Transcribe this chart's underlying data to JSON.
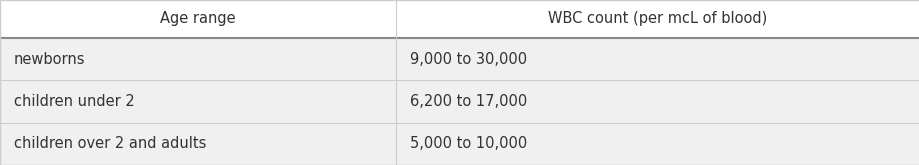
{
  "col1_header": "Age range",
  "col2_header": "WBC count (per mcL of blood)",
  "rows": [
    [
      "newborns",
      "9,000 to 30,000"
    ],
    [
      "children under 2",
      "6,200 to 17,000"
    ],
    [
      "children over 2 and adults",
      "5,000 to 10,000"
    ]
  ],
  "header_bg": "#ffffff",
  "row_bg": "#f0f0f0",
  "divider_color": "#888888",
  "cell_divider_color": "#cccccc",
  "header_fontsize": 10.5,
  "cell_fontsize": 10.5,
  "col_split": 0.43,
  "text_color": "#333333",
  "fig_bg": "#f0f0f0"
}
